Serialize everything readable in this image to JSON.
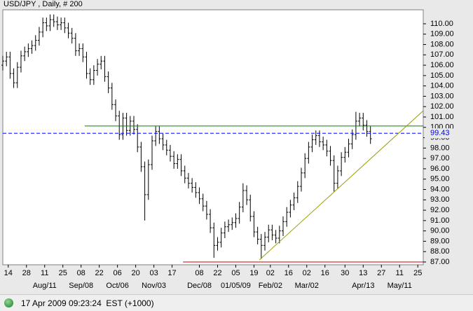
{
  "chart_data": {
    "type": "ohlc",
    "title": "USD/JPY , Daily, # 200",
    "x": [
      0,
      2,
      4,
      6,
      8,
      10,
      12,
      14,
      16,
      18,
      20,
      22,
      24,
      26,
      28,
      30,
      32,
      34,
      36,
      38,
      40,
      42,
      44,
      46,
      48,
      50,
      52,
      54,
      56,
      58,
      60,
      62,
      64,
      66,
      68,
      70,
      72,
      74,
      76,
      78,
      80,
      82,
      84,
      86,
      88,
      90,
      92,
      94,
      96,
      98,
      100,
      102,
      104,
      106,
      108,
      110,
      112,
      114,
      116,
      118,
      120,
      122,
      124,
      126,
      128,
      130,
      132,
      134,
      136,
      138,
      140,
      142,
      144,
      146,
      148,
      150,
      152,
      154,
      156,
      158,
      160,
      162,
      164,
      166,
      168,
      170,
      172,
      174,
      176,
      178,
      180,
      182,
      184,
      186,
      188,
      190,
      192,
      194,
      196,
      198,
      200,
      202
    ],
    "open": [
      106.0,
      106.4,
      106.8,
      105.2,
      104.3,
      105.8,
      106.9,
      107.3,
      107.6,
      107.9,
      108.4,
      109.2,
      110.1,
      109.8,
      110.4,
      110.2,
      109.9,
      110.1,
      109.6,
      109.1,
      108.6,
      107.4,
      107.6,
      106.8,
      105.2,
      104.6,
      105.5,
      106.1,
      106.4,
      104.9,
      103.8,
      102.2,
      101.1,
      99.3,
      100.9,
      99.7,
      100.6,
      99.8,
      98.1,
      96.2,
      93.5,
      96.4,
      98.7,
      99.6,
      98.9,
      98.3,
      97.8,
      97.2,
      96.5,
      96.9,
      95.8,
      95.1,
      94.6,
      94.2,
      93.7,
      93.1,
      92.4,
      91.6,
      90.3,
      88.6,
      88.9,
      89.8,
      90.4,
      90.6,
      90.8,
      91.2,
      92.3,
      93.9,
      93.0,
      91.4,
      89.9,
      89.2,
      88.6,
      89.4,
      90.1,
      89.6,
      89.3,
      90.0,
      90.9,
      91.8,
      92.5,
      93.2,
      94.3,
      95.6,
      97.0,
      98.1,
      98.8,
      99.2,
      98.6,
      98.3,
      97.7,
      96.8,
      94.6,
      95.8,
      97.1,
      97.6,
      98.4,
      99.3,
      100.6,
      100.9,
      100.2,
      99.6
    ],
    "high": [
      106.9,
      107.3,
      107.3,
      105.7,
      106.3,
      107.4,
      107.8,
      108.1,
      108.4,
      108.9,
      109.7,
      110.6,
      110.6,
      110.9,
      110.9,
      110.7,
      110.6,
      110.6,
      110.1,
      109.6,
      109.1,
      108.1,
      108.1,
      107.3,
      105.7,
      106.0,
      106.6,
      106.9,
      106.9,
      105.4,
      104.3,
      102.7,
      101.6,
      101.4,
      101.4,
      101.1,
      101.1,
      100.3,
      98.6,
      96.7,
      96.9,
      99.2,
      100.1,
      100.1,
      99.4,
      98.8,
      98.3,
      97.7,
      97.4,
      97.4,
      96.3,
      95.6,
      95.1,
      94.7,
      94.2,
      93.6,
      92.9,
      92.1,
      90.8,
      89.4,
      90.3,
      90.9,
      91.1,
      91.3,
      91.7,
      92.8,
      94.6,
      94.4,
      93.5,
      91.9,
      90.4,
      89.7,
      89.9,
      90.6,
      90.6,
      90.1,
      90.5,
      91.4,
      92.3,
      93.0,
      93.7,
      94.8,
      96.1,
      97.5,
      98.6,
      99.3,
      99.7,
      99.7,
      99.1,
      98.8,
      98.2,
      97.3,
      96.3,
      97.6,
      98.1,
      98.9,
      99.8,
      101.5,
      101.4,
      101.4,
      100.7,
      100.1
    ],
    "low": [
      105.5,
      105.9,
      104.7,
      103.8,
      103.8,
      105.3,
      106.4,
      106.8,
      107.1,
      107.4,
      107.9,
      108.7,
      109.3,
      109.3,
      109.7,
      109.4,
      109.4,
      109.1,
      108.6,
      108.1,
      106.9,
      106.9,
      106.3,
      104.7,
      104.1,
      104.1,
      105.0,
      105.6,
      104.4,
      103.3,
      101.7,
      100.6,
      98.8,
      98.8,
      99.2,
      99.2,
      99.3,
      97.6,
      95.7,
      91.0,
      93.0,
      95.9,
      98.2,
      98.4,
      97.8,
      97.3,
      96.7,
      96.0,
      96.0,
      95.3,
      94.6,
      94.1,
      93.7,
      93.2,
      92.6,
      91.9,
      91.1,
      89.8,
      87.4,
      88.1,
      88.4,
      89.3,
      89.9,
      90.1,
      90.3,
      90.7,
      91.8,
      92.5,
      90.9,
      89.4,
      88.7,
      87.3,
      88.1,
      88.9,
      89.1,
      88.8,
      88.8,
      89.5,
      90.4,
      91.3,
      92.0,
      92.7,
      93.8,
      95.1,
      96.5,
      97.6,
      98.3,
      98.1,
      97.8,
      97.2,
      96.3,
      93.8,
      94.1,
      95.3,
      96.6,
      97.1,
      97.9,
      98.8,
      100.1,
      99.7,
      99.1,
      98.4
    ],
    "close": [
      106.4,
      106.8,
      105.2,
      104.3,
      105.8,
      106.9,
      107.3,
      107.6,
      107.9,
      108.4,
      109.2,
      110.1,
      109.8,
      110.4,
      110.2,
      109.9,
      110.1,
      109.6,
      109.1,
      108.6,
      107.4,
      107.6,
      106.8,
      105.2,
      104.6,
      105.5,
      106.1,
      106.4,
      104.9,
      103.8,
      102.2,
      101.1,
      99.3,
      100.9,
      99.7,
      100.6,
      99.8,
      98.1,
      96.2,
      93.5,
      96.4,
      98.7,
      99.6,
      98.9,
      98.3,
      97.8,
      97.2,
      96.5,
      96.9,
      95.8,
      95.1,
      94.6,
      94.2,
      93.7,
      93.1,
      92.4,
      91.6,
      90.3,
      88.6,
      88.9,
      89.8,
      90.4,
      90.6,
      90.8,
      91.2,
      92.3,
      93.9,
      93.0,
      91.4,
      89.9,
      89.2,
      88.6,
      89.4,
      90.1,
      89.6,
      89.3,
      90.0,
      90.9,
      91.8,
      92.5,
      93.2,
      94.3,
      95.6,
      97.0,
      98.1,
      98.8,
      99.2,
      98.6,
      98.3,
      97.7,
      96.8,
      94.6,
      95.8,
      97.1,
      97.6,
      98.4,
      99.3,
      100.6,
      100.9,
      100.2,
      99.6,
      98.9
    ],
    "color": "#000000",
    "xlim": [
      0,
      231
    ],
    "ylim": [
      86.73,
      111.35
    ],
    "xticks": [
      {
        "value": 3,
        "label": "14"
      },
      {
        "value": 13,
        "label": "28"
      },
      {
        "value": 23,
        "label": "11"
      },
      {
        "value": 33,
        "label": "25"
      },
      {
        "value": 43,
        "label": "08"
      },
      {
        "value": 53,
        "label": "22"
      },
      {
        "value": 63,
        "label": "06"
      },
      {
        "value": 73,
        "label": "20"
      },
      {
        "value": 83,
        "label": "03"
      },
      {
        "value": 93,
        "label": "17"
      },
      {
        "value": 108,
        "label": "08"
      },
      {
        "value": 118,
        "label": "22"
      },
      {
        "value": 128,
        "label": "05"
      },
      {
        "value": 138,
        "label": "19"
      },
      {
        "value": 147,
        "label": "02"
      },
      {
        "value": 157,
        "label": "16"
      },
      {
        "value": 167,
        "label": "02"
      },
      {
        "value": 177,
        "label": "16"
      },
      {
        "value": 188,
        "label": "30"
      },
      {
        "value": 198,
        "label": "13"
      },
      {
        "value": 208,
        "label": "27"
      },
      {
        "value": 218,
        "label": "11"
      },
      {
        "value": 228,
        "label": "25"
      }
    ],
    "xticks2": [
      {
        "value": 23,
        "label": "Aug/11"
      },
      {
        "value": 43,
        "label": "Sep/08"
      },
      {
        "value": 63,
        "label": "Oct/06"
      },
      {
        "value": 83,
        "label": "Nov/03"
      },
      {
        "value": 108,
        "label": "Dec/08"
      },
      {
        "value": 128,
        "label": "01/05/09"
      },
      {
        "value": 147,
        "label": "Feb/02"
      },
      {
        "value": 167,
        "label": "Mar/02"
      },
      {
        "value": 198,
        "label": "Apr/13"
      },
      {
        "value": 218,
        "label": "May/11"
      }
    ],
    "yticks": [
      {
        "value": 87,
        "label": "87.00"
      },
      {
        "value": 88,
        "label": "88.00"
      },
      {
        "value": 89,
        "label": "89.00"
      },
      {
        "value": 90,
        "label": "90.00"
      },
      {
        "value": 91,
        "label": "91.00"
      },
      {
        "value": 92,
        "label": "92.00"
      },
      {
        "value": 93,
        "label": "93.00"
      },
      {
        "value": 94,
        "label": "94.00"
      },
      {
        "value": 95,
        "label": "95.00"
      },
      {
        "value": 96,
        "label": "96.00"
      },
      {
        "value": 97,
        "label": "97.00"
      },
      {
        "value": 98,
        "label": "98.00"
      },
      {
        "value": 99,
        "label": "99.00"
      },
      {
        "value": 100,
        "label": "100.00"
      },
      {
        "value": 101,
        "label": "101.00"
      },
      {
        "value": 102,
        "label": "102.00"
      },
      {
        "value": 103,
        "label": "103.00"
      },
      {
        "value": 104,
        "label": "104.00"
      },
      {
        "value": 105,
        "label": "105.00"
      },
      {
        "value": 106,
        "label": "106.00"
      },
      {
        "value": 107,
        "label": "107.00"
      },
      {
        "value": 108,
        "label": "108.00"
      },
      {
        "value": 109,
        "label": "109.00"
      },
      {
        "value": 110,
        "label": "110.00"
      }
    ],
    "hlines": [
      {
        "value": 100.13,
        "x_start": 45,
        "color": "#008000"
      },
      {
        "value": 87.0,
        "x_start": 99,
        "color": "#cc0000"
      }
    ],
    "marker_line": {
      "value": 99.43,
      "color": "#0000ff"
    },
    "trendline": {
      "x": [
        141,
        231
      ],
      "y": [
        87.2,
        101.6
      ],
      "color": "#9c9c00"
    },
    "footer": "17 Apr 2009 09:23:24  EST (+1000)"
  }
}
